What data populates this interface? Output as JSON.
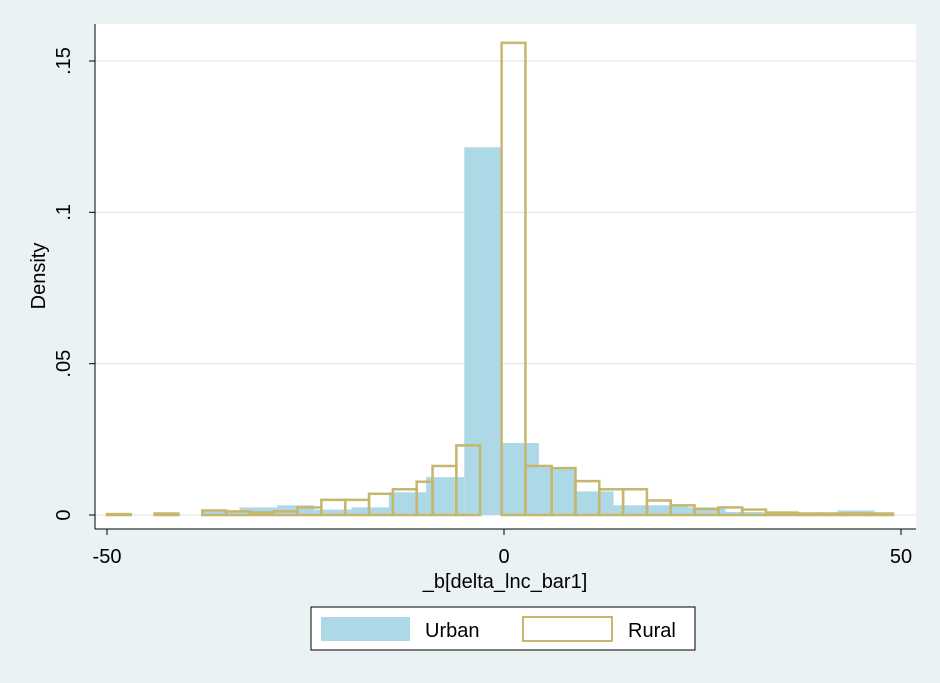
{
  "chart_data": {
    "type": "bar",
    "xlabel": "_b[delta_lnc_bar1]",
    "ylabel": "Density",
    "xlim": [
      -50,
      50
    ],
    "ylim": [
      0,
      0.16
    ],
    "x_ticks": [
      {
        "value": -50,
        "label": "-50"
      },
      {
        "value": 0,
        "label": "0"
      },
      {
        "value": 50,
        "label": "50"
      }
    ],
    "y_ticks": [
      {
        "value": 0,
        "label": "0"
      },
      {
        "value": 0.05,
        "label": ".05"
      },
      {
        "value": 0.1,
        "label": ".1"
      },
      {
        "value": 0.15,
        "label": ".15"
      }
    ],
    "grid": true,
    "legend_position": "bottom",
    "series": [
      {
        "name": "Urban",
        "style": "filled",
        "color": "#add8e6",
        "bins": [
          {
            "x0": -38.0,
            "x1": -33.3,
            "y": 0.0012
          },
          {
            "x0": -33.3,
            "x1": -28.6,
            "y": 0.0025
          },
          {
            "x0": -28.6,
            "x1": -23.9,
            "y": 0.0032
          },
          {
            "x0": -23.9,
            "x1": -19.2,
            "y": 0.0018
          },
          {
            "x0": -19.2,
            "x1": -14.5,
            "y": 0.0025
          },
          {
            "x0": -14.5,
            "x1": -9.8,
            "y": 0.0075
          },
          {
            "x0": -9.8,
            "x1": -5.0,
            "y": 0.0125
          },
          {
            "x0": -5.0,
            "x1": -0.3,
            "y": 0.1215
          },
          {
            "x0": -0.3,
            "x1": 4.4,
            "y": 0.0238
          },
          {
            "x0": 4.4,
            "x1": 9.1,
            "y": 0.0158
          },
          {
            "x0": 9.1,
            "x1": 13.8,
            "y": 0.0078
          },
          {
            "x0": 13.8,
            "x1": 18.5,
            "y": 0.0032
          },
          {
            "x0": 18.5,
            "x1": 23.2,
            "y": 0.0032
          },
          {
            "x0": 23.2,
            "x1": 27.9,
            "y": 0.0025
          },
          {
            "x0": 27.9,
            "x1": 32.6,
            "y": 0.001
          },
          {
            "x0": 32.6,
            "x1": 37.3,
            "y": 0.0008
          },
          {
            "x0": 37.3,
            "x1": 42.0,
            "y": 0.0008
          },
          {
            "x0": 42.0,
            "x1": 46.7,
            "y": 0.0015
          }
        ]
      },
      {
        "name": "Rural",
        "style": "outline",
        "color": "#c7b66e",
        "bins": [
          {
            "x0": -50.0,
            "x1": -47.0,
            "y": 0.0003
          },
          {
            "x0": -44.0,
            "x1": -41.0,
            "y": 0.0005
          },
          {
            "x0": -38.0,
            "x1": -35.0,
            "y": 0.0015
          },
          {
            "x0": -35.0,
            "x1": -32.0,
            "y": 0.0012
          },
          {
            "x0": -32.0,
            "x1": -29.0,
            "y": 0.0008
          },
          {
            "x0": -29.0,
            "x1": -26.0,
            "y": 0.0012
          },
          {
            "x0": -26.0,
            "x1": -23.0,
            "y": 0.0025
          },
          {
            "x0": -23.0,
            "x1": -20.0,
            "y": 0.005
          },
          {
            "x0": -20.0,
            "x1": -17.0,
            "y": 0.005
          },
          {
            "x0": -17.0,
            "x1": -14.0,
            "y": 0.007
          },
          {
            "x0": -14.0,
            "x1": -11.0,
            "y": 0.0085
          },
          {
            "x0": -11.0,
            "x1": -9.0,
            "y": 0.011
          },
          {
            "x0": -9.0,
            "x1": -6.0,
            "y": 0.0162
          },
          {
            "x0": -6.0,
            "x1": -3.0,
            "y": 0.023
          },
          {
            "x0": -0.3,
            "x1": 2.7,
            "y": 0.156
          },
          {
            "x0": 2.7,
            "x1": 6.0,
            "y": 0.0162
          },
          {
            "x0": 6.0,
            "x1": 9.0,
            "y": 0.0155
          },
          {
            "x0": 9.0,
            "x1": 12.0,
            "y": 0.0112
          },
          {
            "x0": 12.0,
            "x1": 15.0,
            "y": 0.0085
          },
          {
            "x0": 15.0,
            "x1": 18.0,
            "y": 0.0085
          },
          {
            "x0": 18.0,
            "x1": 21.0,
            "y": 0.0048
          },
          {
            "x0": 21.0,
            "x1": 24.0,
            "y": 0.0032
          },
          {
            "x0": 24.0,
            "x1": 27.0,
            "y": 0.002
          },
          {
            "x0": 27.0,
            "x1": 30.0,
            "y": 0.0025
          },
          {
            "x0": 30.0,
            "x1": 33.0,
            "y": 0.0018
          },
          {
            "x0": 33.0,
            "x1": 37.0,
            "y": 0.0008
          },
          {
            "x0": 37.0,
            "x1": 40.0,
            "y": 0.0005
          },
          {
            "x0": 40.0,
            "x1": 43.0,
            "y": 0.0005
          },
          {
            "x0": 43.0,
            "x1": 46.0,
            "y": 0.0005
          },
          {
            "x0": 46.0,
            "x1": 49.0,
            "y": 0.0005
          }
        ]
      }
    ]
  }
}
